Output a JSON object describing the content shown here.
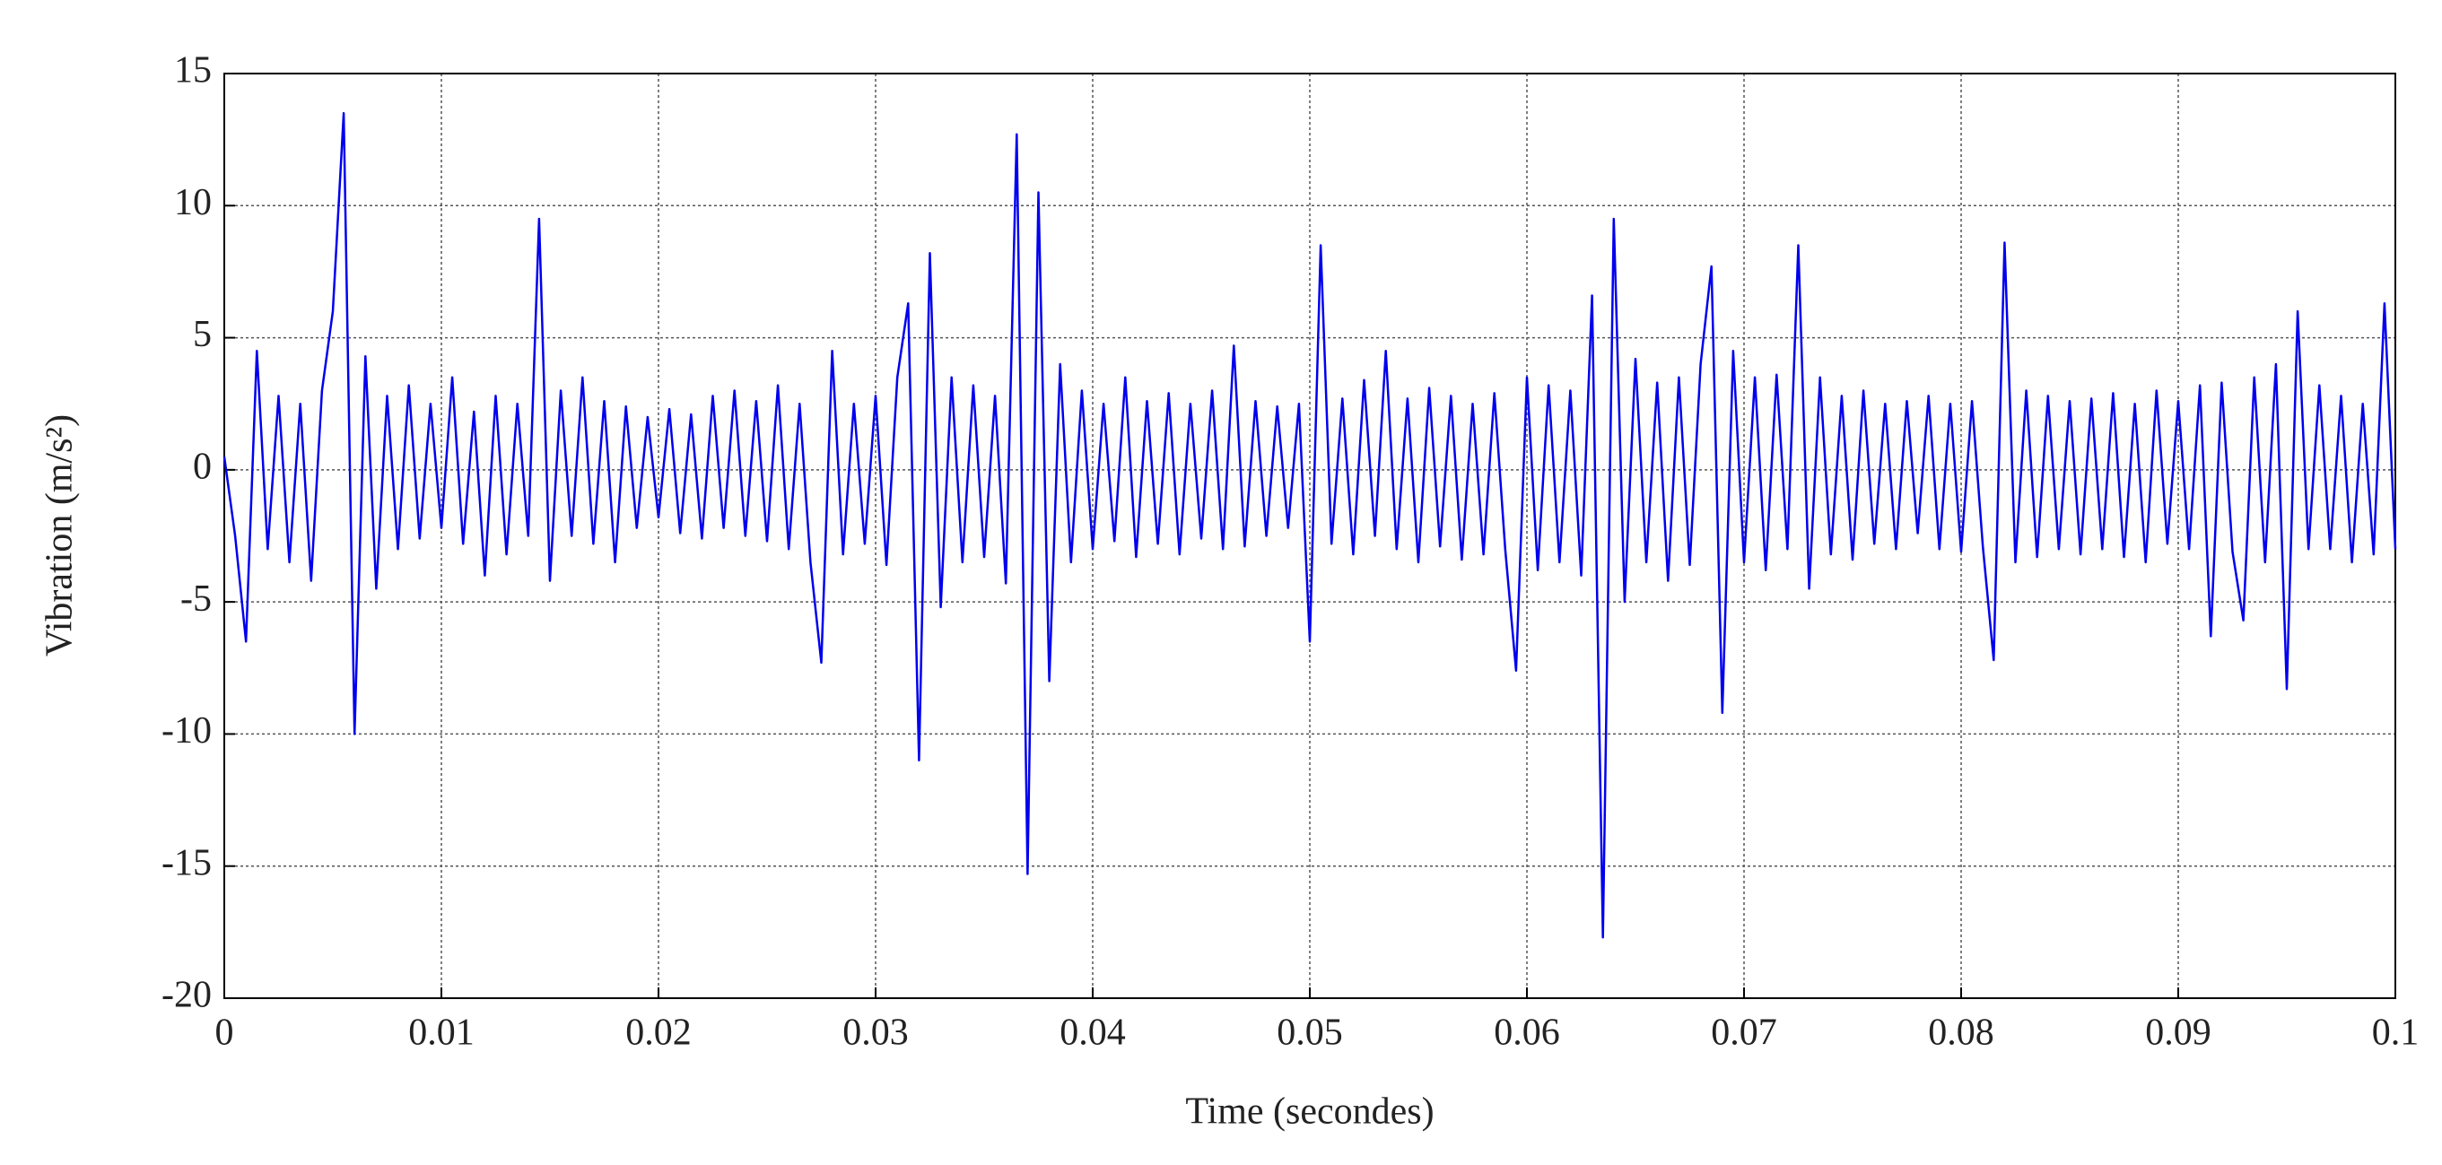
{
  "chart_data": {
    "type": "line",
    "xlabel": "Time (secondes)",
    "ylabel": "Vibration (m/s²)",
    "xlim": [
      0,
      0.1
    ],
    "ylim": [
      -20,
      15
    ],
    "xticks": [
      0,
      0.01,
      0.02,
      0.03,
      0.04,
      0.05,
      0.06,
      0.07,
      0.08,
      0.09,
      0.1
    ],
    "yticks": [
      -20,
      -15,
      -10,
      -5,
      0,
      5,
      10,
      15
    ],
    "grid": true,
    "x": [
      0,
      0.0005,
      0.001,
      0.0015,
      0.002,
      0.0025,
      0.003,
      0.0035,
      0.004,
      0.0045,
      0.005,
      0.0055,
      0.006,
      0.0065,
      0.007,
      0.0075,
      0.008,
      0.0085,
      0.009,
      0.0095,
      0.01,
      0.0105,
      0.011,
      0.0115,
      0.012,
      0.0125,
      0.013,
      0.0135,
      0.014,
      0.0145,
      0.015,
      0.0155,
      0.016,
      0.0165,
      0.017,
      0.0175,
      0.018,
      0.0185,
      0.019,
      0.0195,
      0.02,
      0.0205,
      0.021,
      0.0215,
      0.022,
      0.0225,
      0.023,
      0.0235,
      0.024,
      0.0245,
      0.025,
      0.0255,
      0.026,
      0.0265,
      0.027,
      0.0275,
      0.028,
      0.0285,
      0.029,
      0.0295,
      0.03,
      0.0305,
      0.031,
      0.0315,
      0.032,
      0.0325,
      0.033,
      0.0335,
      0.034,
      0.0345,
      0.035,
      0.0355,
      0.036,
      0.0365,
      0.037,
      0.0375,
      0.038,
      0.0385,
      0.039,
      0.0395,
      0.04,
      0.0405,
      0.041,
      0.0415,
      0.042,
      0.0425,
      0.043,
      0.0435,
      0.044,
      0.0445,
      0.045,
      0.0455,
      0.046,
      0.0465,
      0.047,
      0.0475,
      0.048,
      0.0485,
      0.049,
      0.0495,
      0.05,
      0.0505,
      0.051,
      0.0515,
      0.052,
      0.0525,
      0.053,
      0.0535,
      0.054,
      0.0545,
      0.055,
      0.0555,
      0.056,
      0.0565,
      0.057,
      0.0575,
      0.058,
      0.0585,
      0.059,
      0.0595,
      0.06,
      0.0605,
      0.061,
      0.0615,
      0.062,
      0.0625,
      0.063,
      0.0635,
      0.064,
      0.0645,
      0.065,
      0.0655,
      0.066,
      0.0665,
      0.067,
      0.0675,
      0.068,
      0.0685,
      0.069,
      0.0695,
      0.07,
      0.0705,
      0.071,
      0.0715,
      0.072,
      0.0725,
      0.073,
      0.0735,
      0.074,
      0.0745,
      0.075,
      0.0755,
      0.076,
      0.0765,
      0.077,
      0.0775,
      0.078,
      0.0785,
      0.079,
      0.0795,
      0.08,
      0.0805,
      0.081,
      0.0815,
      0.082,
      0.0825,
      0.083,
      0.0835,
      0.084,
      0.0845,
      0.085,
      0.0855,
      0.086,
      0.0865,
      0.087,
      0.0875,
      0.088,
      0.0885,
      0.089,
      0.0895,
      0.09,
      0.0905,
      0.091,
      0.0915,
      0.092,
      0.0925,
      0.093,
      0.0935,
      0.094,
      0.0945,
      0.095,
      0.0955,
      0.096,
      0.0965,
      0.097,
      0.0975,
      0.098,
      0.0985,
      0.099,
      0.0995,
      0.1
    ],
    "series": [
      {
        "color": "#0000ee",
        "values": [
          0.5,
          -2.5,
          -6.5,
          4.5,
          -3,
          2.8,
          -3.5,
          2.5,
          -4.2,
          3,
          6,
          13.5,
          -10,
          4.3,
          -4.5,
          2.8,
          -3,
          3.2,
          -2.6,
          2.5,
          -2.2,
          3.5,
          -2.8,
          2.2,
          -4,
          2.8,
          -3.2,
          2.5,
          -2.5,
          9.5,
          -4.2,
          3,
          -2.5,
          3.5,
          -2.8,
          2.6,
          -3.5,
          2.4,
          -2.2,
          2,
          -1.8,
          2.3,
          -2.4,
          2.1,
          -2.6,
          2.8,
          -2.2,
          3,
          -2.5,
          2.6,
          -2.7,
          3.2,
          -3,
          2.5,
          -3.5,
          -7.3,
          4.5,
          -3.2,
          2.5,
          -2.8,
          2.8,
          -3.6,
          3.5,
          6.3,
          -11,
          8.2,
          -5.2,
          3.5,
          -3.5,
          3.2,
          -3.3,
          2.8,
          -4.3,
          12.7,
          -15.3,
          10.5,
          -8,
          4,
          -3.5,
          3,
          -3,
          2.5,
          -2.7,
          3.5,
          -3.3,
          2.6,
          -2.8,
          2.9,
          -3.2,
          2.5,
          -2.6,
          3,
          -3,
          4.7,
          -2.9,
          2.6,
          -2.5,
          2.4,
          -2.2,
          2.5,
          -6.5,
          8.5,
          -2.8,
          2.7,
          -3.2,
          3.4,
          -2.5,
          4.5,
          -3,
          2.7,
          -3.5,
          3.1,
          -2.9,
          2.8,
          -3.4,
          2.5,
          -3.2,
          2.9,
          -3,
          -7.6,
          3.5,
          -3.8,
          3.2,
          -3.5,
          3,
          -4,
          6.6,
          -17.7,
          9.5,
          -5,
          4.2,
          -3.5,
          3.3,
          -4.2,
          3.5,
          -3.6,
          4,
          7.7,
          -9.2,
          4.5,
          -3.5,
          3.5,
          -3.8,
          3.6,
          -3,
          8.5,
          -4.5,
          3.5,
          -3.2,
          2.8,
          -3.4,
          3,
          -2.8,
          2.5,
          -3,
          2.6,
          -2.4,
          2.8,
          -3,
          2.5,
          -3.1,
          2.6,
          -2.9,
          -7.2,
          8.6,
          -3.5,
          3,
          -3.3,
          2.8,
          -3,
          2.6,
          -3.2,
          2.7,
          -3,
          2.9,
          -3.3,
          2.5,
          -3.5,
          3,
          -2.8,
          2.6,
          -3,
          3.2,
          -6.3,
          3.3,
          -3.1,
          -5.7,
          3.5,
          -3.5,
          4,
          -8.3,
          6,
          -3,
          3.2,
          -3,
          2.8,
          -3.5,
          2.5,
          -3.2,
          6.3,
          -3
        ]
      }
    ]
  }
}
